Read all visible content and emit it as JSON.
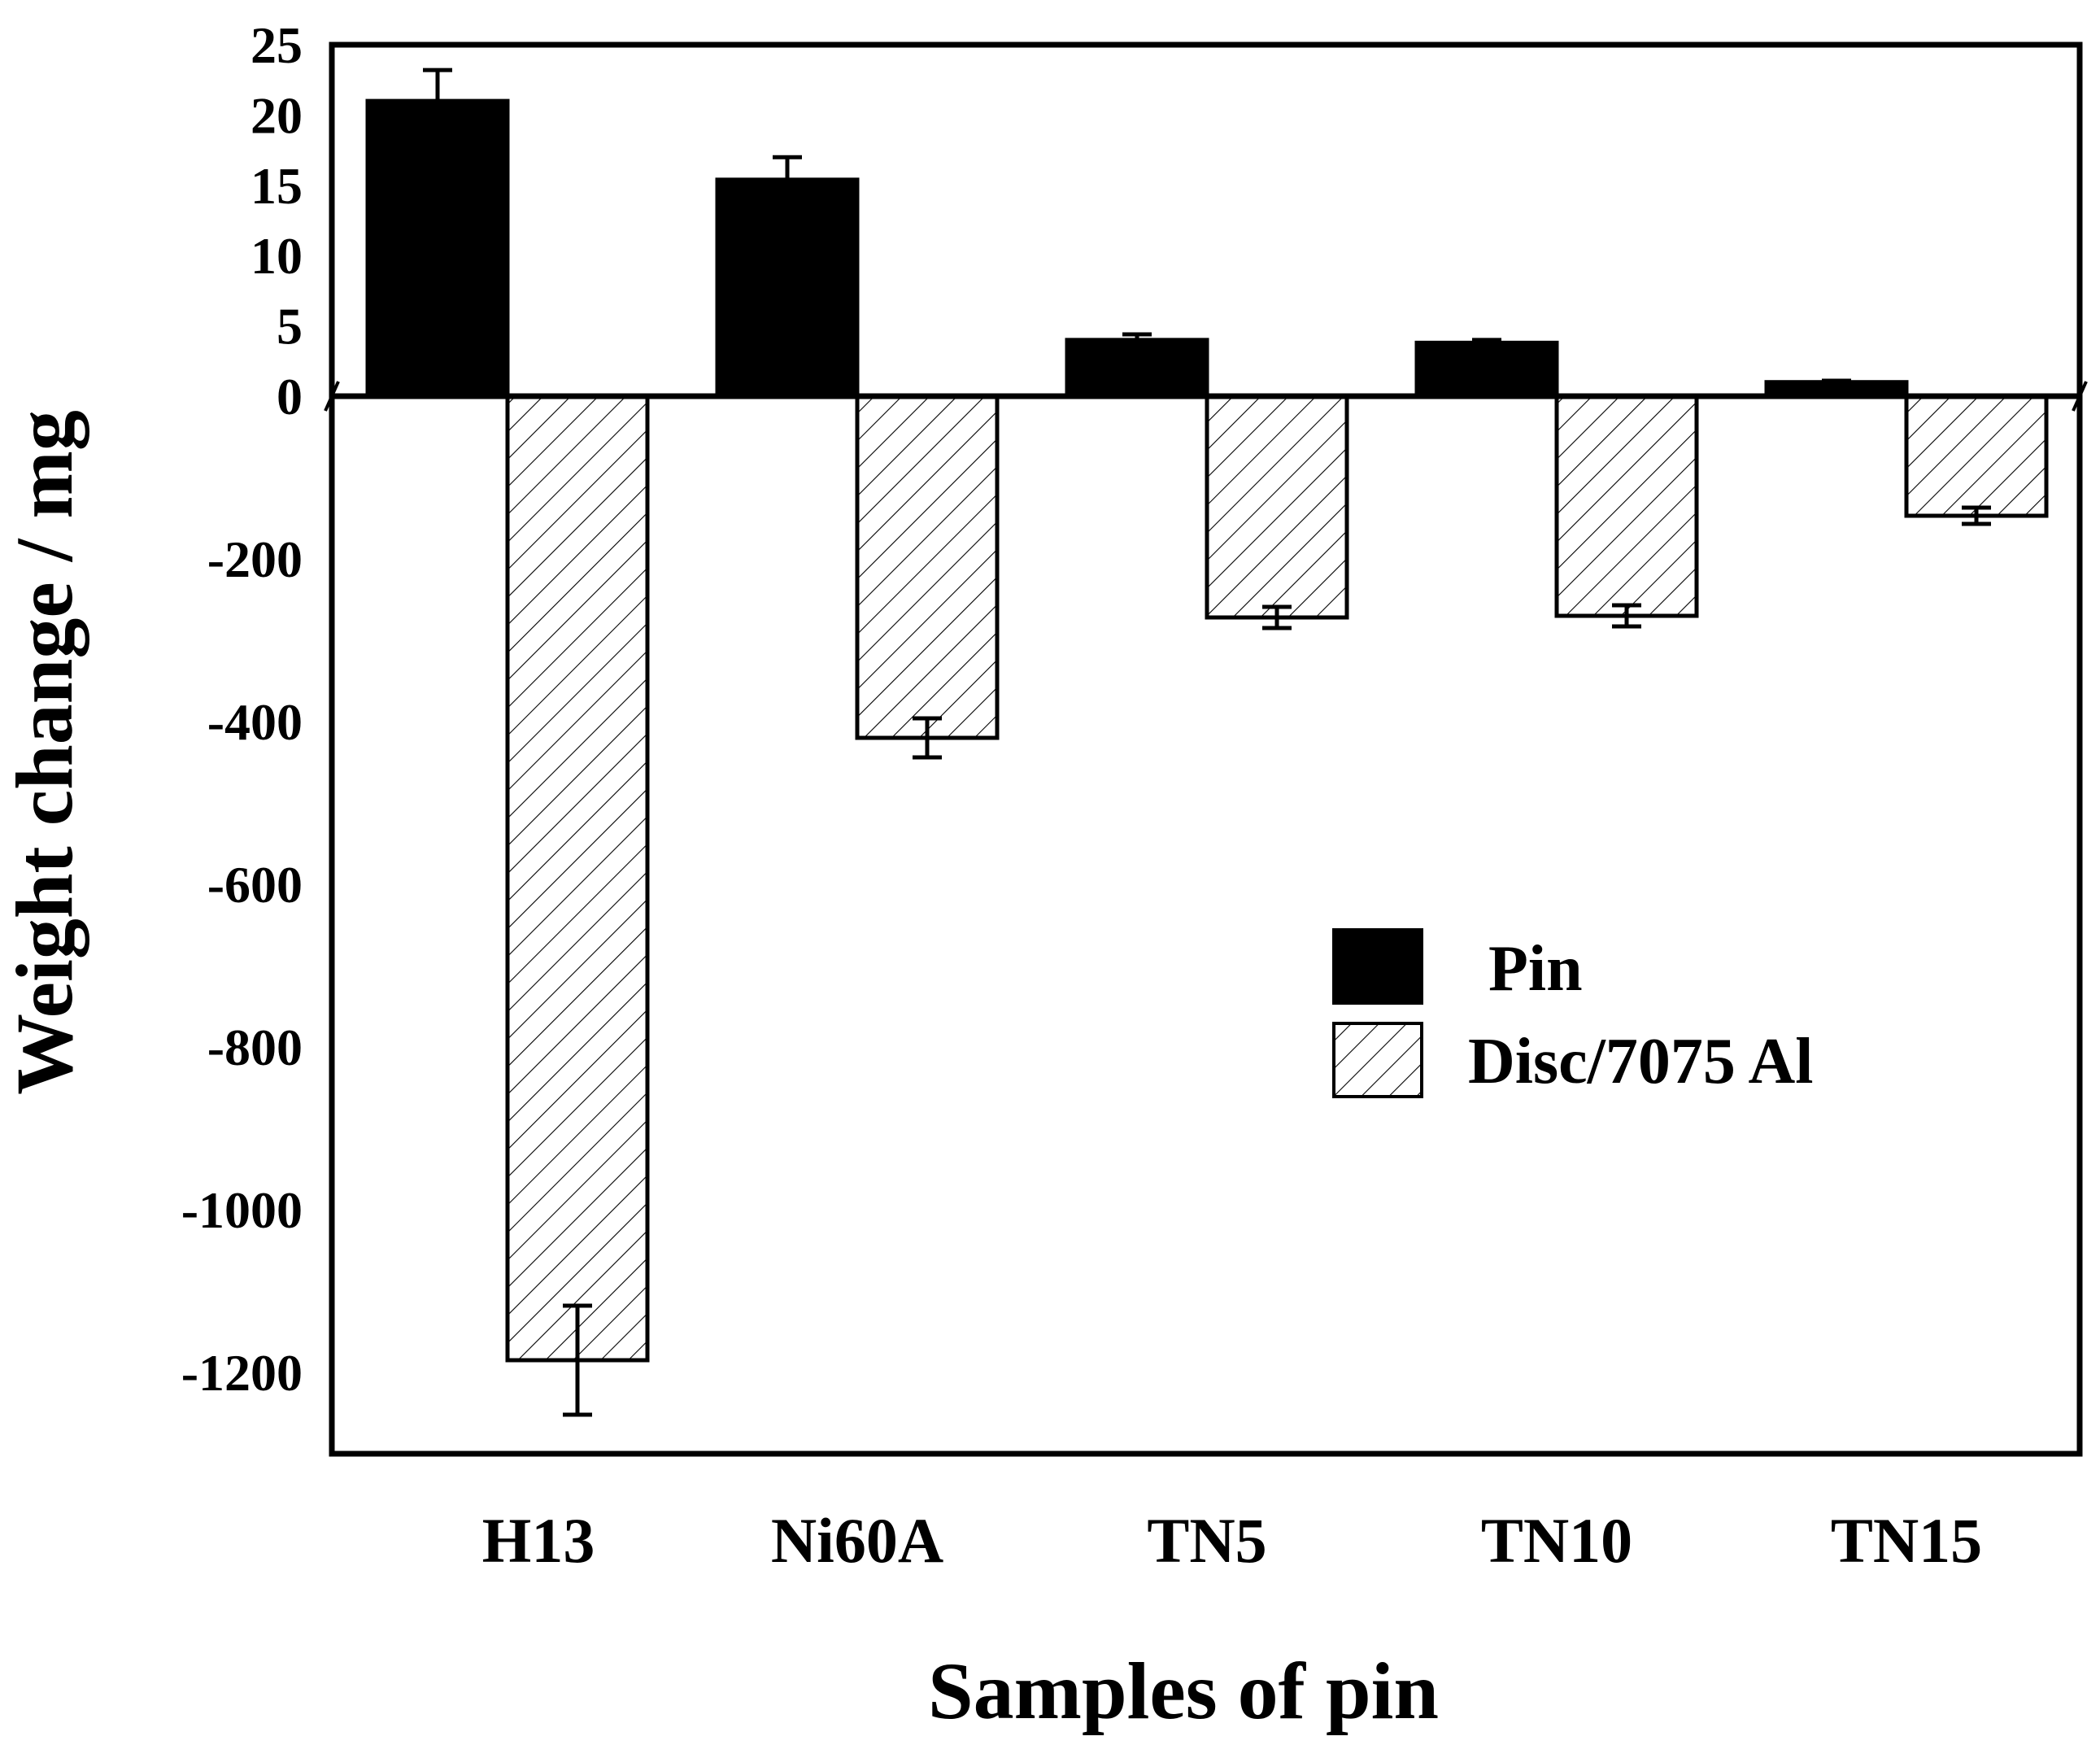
{
  "chart_data": {
    "type": "bar",
    "title": "",
    "xlabel": "Samples of pin",
    "ylabel": "Weight change / mg",
    "categories": [
      "H13",
      "Ni60A",
      "TN5",
      "TN10",
      "TN15"
    ],
    "axis_break": {
      "upper_range": [
        0,
        25
      ],
      "upper_ticks": [
        0,
        5,
        10,
        15,
        20,
        25
      ],
      "lower_range": [
        -1300,
        0
      ],
      "lower_ticks": [
        -1200,
        -1000,
        -800,
        -600,
        -400,
        -200
      ]
    },
    "series": [
      {
        "name": "Pin",
        "style": "solid",
        "color": "#000000",
        "values": [
          21,
          15.4,
          4,
          3.8,
          1
        ],
        "error": [
          2.2,
          1.6,
          0.4,
          0.2,
          0.1
        ]
      },
      {
        "name": "Disc/7075 Al",
        "style": "hatched",
        "color": "#ffffff",
        "values": [
          -1185,
          -420,
          -272,
          -270,
          -147
        ],
        "error": [
          67,
          24,
          13,
          13,
          10
        ]
      }
    ],
    "legend": {
      "position": "center-right",
      "entries": [
        "Pin",
        "Disc/7075 Al"
      ]
    },
    "grid": false
  }
}
